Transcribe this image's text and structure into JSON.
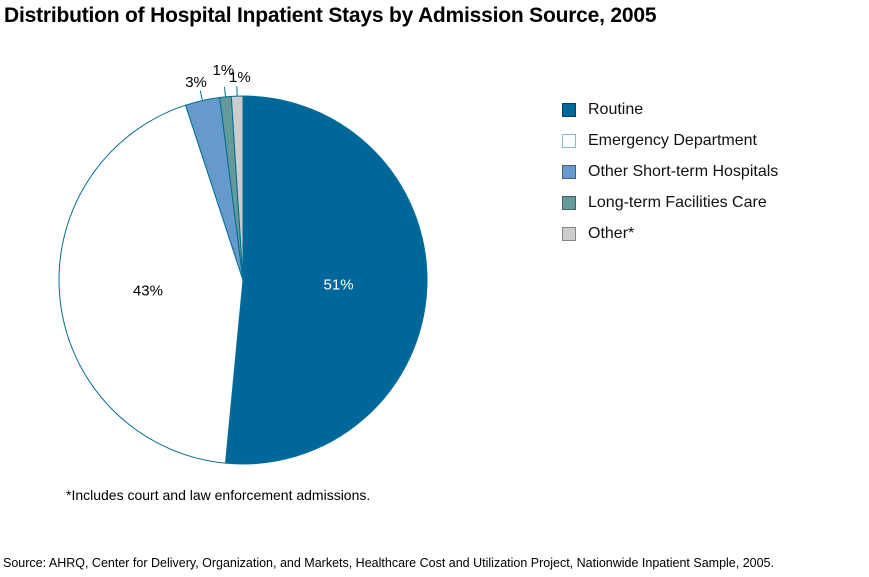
{
  "chart_data": {
    "type": "pie",
    "title": "Distribution of Hospital Inpatient Stays by Admission Source, 2005",
    "slices": [
      {
        "name": "Routine",
        "value": 51,
        "label": "51%",
        "color": "#00679a",
        "label_color": "#ffffff",
        "label_inside": true
      },
      {
        "name": "Emergency Department",
        "value": 43,
        "label": "43%",
        "color": "#ffffff",
        "label_color": "#000000",
        "label_inside": true
      },
      {
        "name": "Other Short-term Hospitals",
        "value": 3,
        "label": "3%",
        "color": "#6699cc",
        "label_color": "#000000",
        "label_inside": false
      },
      {
        "name": "Long-term Facilities Care",
        "value": 1,
        "label": "1%",
        "color": "#669999",
        "label_color": "#000000",
        "label_inside": false
      },
      {
        "name": "Other*",
        "value": 1,
        "label": "1%",
        "color": "#cccccc",
        "label_color": "#000000",
        "label_inside": false
      }
    ],
    "start": "top",
    "direction": "clockwise",
    "edge_color": "#006f94",
    "legend_position": "right"
  },
  "footnote": "*Includes court and law enforcement admissions.",
  "source": "Source:  AHRQ, Center for Delivery, Organization, and Markets, Healthcare Cost and Utilization Project, Nationwide Inpatient Sample, 2005."
}
